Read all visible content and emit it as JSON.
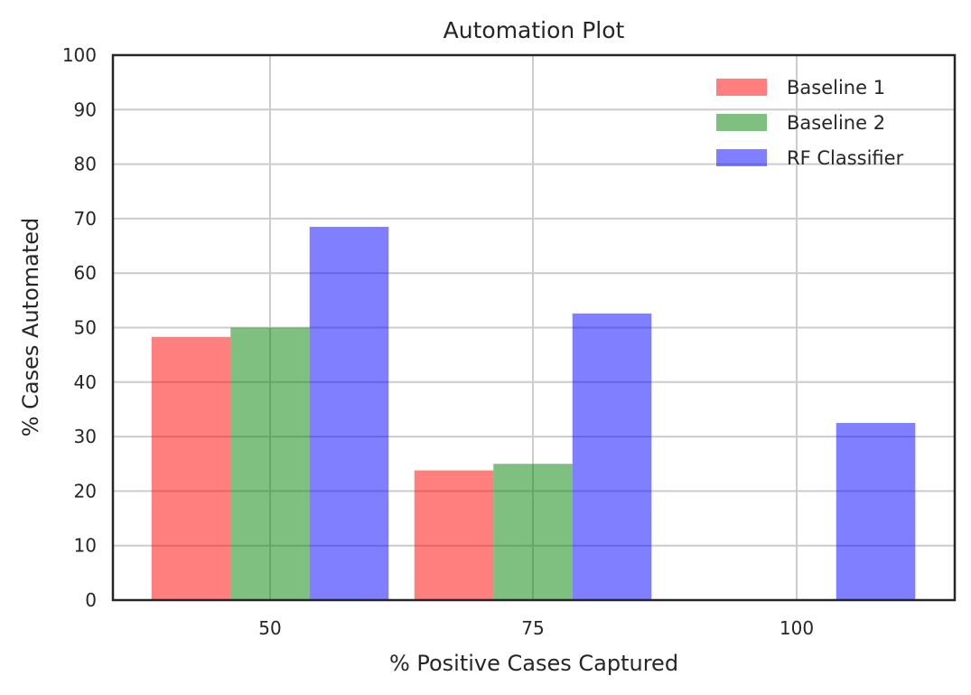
{
  "chart_data": {
    "type": "bar",
    "title": "Automation Plot",
    "xlabel": "% Positive Cases Captured",
    "ylabel": "% Cases Automated",
    "categories": [
      "50",
      "75",
      "100"
    ],
    "ylim": [
      0,
      100
    ],
    "yticks": [
      0,
      10,
      20,
      30,
      40,
      50,
      60,
      70,
      80,
      90,
      100
    ],
    "grid": true,
    "legend_position": "top-right",
    "bar_opacity": 0.5,
    "series": [
      {
        "name": "Baseline 1",
        "color": "#ff0000",
        "values": [
          48.3,
          23.8,
          0
        ]
      },
      {
        "name": "Baseline 2",
        "color": "#008000",
        "values": [
          50.0,
          25.0,
          0
        ]
      },
      {
        "name": "RF Classifier",
        "color": "#0000ff",
        "values": [
          68.5,
          52.6,
          32.5
        ]
      }
    ]
  }
}
